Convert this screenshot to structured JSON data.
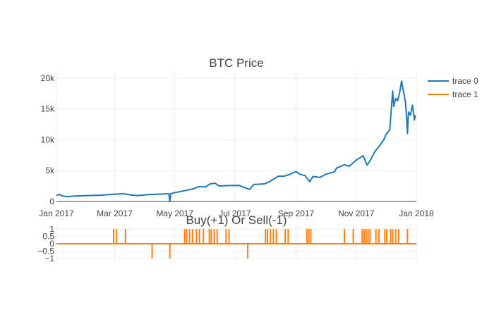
{
  "chart_data": [
    {
      "type": "line",
      "title": "BTC Price",
      "xlabel": "",
      "ylabel": "",
      "xlim": [
        "2017-01-01",
        "2018-01-01"
      ],
      "ylim": [
        0,
        21000
      ],
      "x_ticks": [
        {
          "date": "2017-01-01",
          "label": "Jan 2017"
        },
        {
          "date": "2017-03-01",
          "label": "Mar 2017"
        },
        {
          "date": "2017-05-01",
          "label": "May 2017"
        },
        {
          "date": "2017-07-01",
          "label": "Jul 2017"
        },
        {
          "date": "2017-09-01",
          "label": "Sep 2017"
        },
        {
          "date": "2017-11-01",
          "label": "Nov 2017"
        },
        {
          "date": "2018-01-01",
          "label": "Jan 2018"
        }
      ],
      "y_ticks": [
        {
          "value": 0,
          "label": "0"
        },
        {
          "value": 5000,
          "label": "5k"
        },
        {
          "value": 10000,
          "label": "10k"
        },
        {
          "value": 15000,
          "label": "15k"
        },
        {
          "value": 20000,
          "label": "20k"
        }
      ],
      "grid": true,
      "legend_position": "top-right",
      "series": [
        {
          "name": "trace 0",
          "color": "#1f77b4",
          "points": [
            [
              "2017-01-01",
              980
            ],
            [
              "2017-01-04",
              1140
            ],
            [
              "2017-01-07",
              880
            ],
            [
              "2017-01-12",
              790
            ],
            [
              "2017-01-20",
              890
            ],
            [
              "2017-02-01",
              960
            ],
            [
              "2017-02-15",
              1010
            ],
            [
              "2017-03-01",
              1190
            ],
            [
              "2017-03-10",
              1250
            ],
            [
              "2017-03-18",
              1040
            ],
            [
              "2017-03-25",
              960
            ],
            [
              "2017-04-05",
              1130
            ],
            [
              "2017-04-15",
              1180
            ],
            [
              "2017-04-25",
              1250
            ],
            [
              "2017-04-26",
              0
            ],
            [
              "2017-04-27",
              1290
            ],
            [
              "2017-05-10",
              1720
            ],
            [
              "2017-05-20",
              2050
            ],
            [
              "2017-05-25",
              2400
            ],
            [
              "2017-06-01",
              2350
            ],
            [
              "2017-06-06",
              2850
            ],
            [
              "2017-06-11",
              2950
            ],
            [
              "2017-06-15",
              2500
            ],
            [
              "2017-06-25",
              2580
            ],
            [
              "2017-07-05",
              2600
            ],
            [
              "2017-07-16",
              1950
            ],
            [
              "2017-07-20",
              2750
            ],
            [
              "2017-07-31",
              2850
            ],
            [
              "2017-08-05",
              3200
            ],
            [
              "2017-08-14",
              4100
            ],
            [
              "2017-08-20",
              4100
            ],
            [
              "2017-08-25",
              4350
            ],
            [
              "2017-09-01",
              4850
            ],
            [
              "2017-09-05",
              4400
            ],
            [
              "2017-09-10",
              4200
            ],
            [
              "2017-09-15",
              3200
            ],
            [
              "2017-09-18",
              4050
            ],
            [
              "2017-09-25",
              3900
            ],
            [
              "2017-10-01",
              4400
            ],
            [
              "2017-10-10",
              4800
            ],
            [
              "2017-10-12",
              5400
            ],
            [
              "2017-10-20",
              5950
            ],
            [
              "2017-10-25",
              5700
            ],
            [
              "2017-11-01",
              6700
            ],
            [
              "2017-11-08",
              7400
            ],
            [
              "2017-11-12",
              5900
            ],
            [
              "2017-11-15",
              6600
            ],
            [
              "2017-11-20",
              8100
            ],
            [
              "2017-11-26",
              9300
            ],
            [
              "2017-11-29",
              10000
            ],
            [
              "2017-12-01",
              10800
            ],
            [
              "2017-12-05",
              11600
            ],
            [
              "2017-12-07",
              15900
            ],
            [
              "2017-12-08",
              17900
            ],
            [
              "2017-12-09",
              15400
            ],
            [
              "2017-12-11",
              16700
            ],
            [
              "2017-12-13",
              16300
            ],
            [
              "2017-12-15",
              17600
            ],
            [
              "2017-12-17",
              19500
            ],
            [
              "2017-12-19",
              17800
            ],
            [
              "2017-12-21",
              16000
            ],
            [
              "2017-12-22",
              13800
            ],
            [
              "2017-12-23",
              11000
            ],
            [
              "2017-12-24",
              14500
            ],
            [
              "2017-12-26",
              14000
            ],
            [
              "2017-12-28",
              15600
            ],
            [
              "2017-12-30",
              13200
            ],
            [
              "2017-12-31",
              14000
            ]
          ]
        }
      ]
    },
    {
      "type": "bar",
      "title": "Buy(+1) Or Sell(-1)",
      "xlabel": "",
      "ylabel": "",
      "xlim": [
        "2017-01-01",
        "2018-01-01"
      ],
      "ylim": [
        -1.2,
        1.2
      ],
      "y_ticks": [
        {
          "value": 1,
          "label": "1"
        },
        {
          "value": 0.5,
          "label": "0.5"
        },
        {
          "value": 0,
          "label": "0"
        },
        {
          "value": -0.5,
          "label": "−0.5"
        },
        {
          "value": -1,
          "label": "−1"
        }
      ],
      "grid": true,
      "series": [
        {
          "name": "trace 1",
          "color": "#ff7f0e",
          "signals": [
            [
              "2017-02-28",
              1
            ],
            [
              "2017-03-03",
              1
            ],
            [
              "2017-03-12",
              1
            ],
            [
              "2017-04-08",
              -1
            ],
            [
              "2017-04-26",
              -1
            ],
            [
              "2017-05-11",
              1
            ],
            [
              "2017-05-13",
              1
            ],
            [
              "2017-05-16",
              1
            ],
            [
              "2017-05-19",
              1
            ],
            [
              "2017-05-23",
              1
            ],
            [
              "2017-05-26",
              1
            ],
            [
              "2017-05-30",
              1
            ],
            [
              "2017-06-05",
              1
            ],
            [
              "2017-06-07",
              1
            ],
            [
              "2017-06-10",
              1
            ],
            [
              "2017-06-13",
              1
            ],
            [
              "2017-06-22",
              1
            ],
            [
              "2017-06-25",
              1
            ],
            [
              "2017-07-14",
              -1
            ],
            [
              "2017-08-01",
              1
            ],
            [
              "2017-08-03",
              1
            ],
            [
              "2017-08-06",
              1
            ],
            [
              "2017-08-09",
              1
            ],
            [
              "2017-08-12",
              1
            ],
            [
              "2017-08-21",
              1
            ],
            [
              "2017-08-24",
              1
            ],
            [
              "2017-09-12",
              1
            ],
            [
              "2017-09-14",
              1
            ],
            [
              "2017-09-16",
              1
            ],
            [
              "2017-10-20",
              1
            ],
            [
              "2017-10-29",
              1
            ],
            [
              "2017-11-07",
              1
            ],
            [
              "2017-11-09",
              1
            ],
            [
              "2017-11-11",
              1
            ],
            [
              "2017-11-13",
              1
            ],
            [
              "2017-11-15",
              1
            ],
            [
              "2017-11-21",
              1
            ],
            [
              "2017-11-24",
              1
            ],
            [
              "2017-11-30",
              1
            ],
            [
              "2017-12-02",
              1
            ],
            [
              "2017-12-06",
              1
            ],
            [
              "2017-12-08",
              1
            ],
            [
              "2017-12-11",
              1
            ],
            [
              "2017-12-14",
              1
            ],
            [
              "2017-12-23",
              1
            ]
          ]
        }
      ]
    }
  ]
}
